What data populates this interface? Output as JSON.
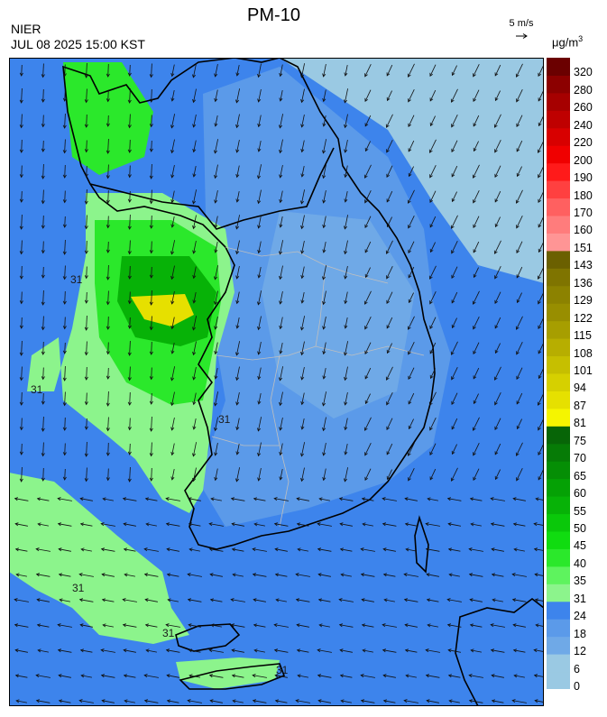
{
  "header": {
    "title": "PM-10",
    "organization": "NIER",
    "timestamp": "JUL 08 2025 15:00 KST",
    "wind_reference": "5 m/s",
    "unit_base": "μg/m",
    "unit_exp": "3"
  },
  "legend": {
    "bins": [
      {
        "label": "0",
        "color": "#9ac9e3"
      },
      {
        "label": "6",
        "color": "#9ac9e3"
      },
      {
        "label": "12",
        "color": "#6fa9e7"
      },
      {
        "label": "18",
        "color": "#5b9ae9"
      },
      {
        "label": "24",
        "color": "#3d84ec"
      },
      {
        "label": "31",
        "color": "#8cf48c"
      },
      {
        "label": "35",
        "color": "#5ef35e"
      },
      {
        "label": "40",
        "color": "#2be82b"
      },
      {
        "label": "45",
        "color": "#10dc10"
      },
      {
        "label": "50",
        "color": "#0ac80a"
      },
      {
        "label": "55",
        "color": "#07b207"
      },
      {
        "label": "60",
        "color": "#05a105"
      },
      {
        "label": "65",
        "color": "#058e05"
      },
      {
        "label": "70",
        "color": "#067b06"
      },
      {
        "label": "75",
        "color": "#076507"
      },
      {
        "label": "81",
        "color": "#f5f500"
      },
      {
        "label": "87",
        "color": "#e6e000"
      },
      {
        "label": "94",
        "color": "#d6d000"
      },
      {
        "label": "101",
        "color": "#c6bf00"
      },
      {
        "label": "108",
        "color": "#b7ae00"
      },
      {
        "label": "115",
        "color": "#a79e00"
      },
      {
        "label": "122",
        "color": "#988e00"
      },
      {
        "label": "129",
        "color": "#8c8200"
      },
      {
        "label": "136",
        "color": "#7f7400"
      },
      {
        "label": "143",
        "color": "#6b6000"
      },
      {
        "label": "151",
        "color": "#ff9595"
      },
      {
        "label": "160",
        "color": "#ff7c7c"
      },
      {
        "label": "170",
        "color": "#ff6060"
      },
      {
        "label": "180",
        "color": "#ff4040"
      },
      {
        "label": "190",
        "color": "#ff1a1a"
      },
      {
        "label": "200",
        "color": "#f00000"
      },
      {
        "label": "220",
        "color": "#d80000"
      },
      {
        "label": "240",
        "color": "#bf0000"
      },
      {
        "label": "260",
        "color": "#a60000"
      },
      {
        "label": "280",
        "color": "#8c0000"
      },
      {
        "label": "320",
        "color": "#6b0000"
      }
    ]
  },
  "map": {
    "contour_labels": [
      "31",
      "31",
      "31",
      "31",
      "31",
      "31"
    ],
    "colors": {
      "sea_blue": "#3d84ec",
      "land_blue": "#5b9ae9",
      "light_blue": "#9ac9e3",
      "mid_blue": "#6fa9e7",
      "light_green": "#8cf48c",
      "green": "#2be82b",
      "dark_green": "#07b207",
      "yellow": "#e6e000",
      "coast": "#000000",
      "boundary": "#bfbfbf"
    }
  }
}
